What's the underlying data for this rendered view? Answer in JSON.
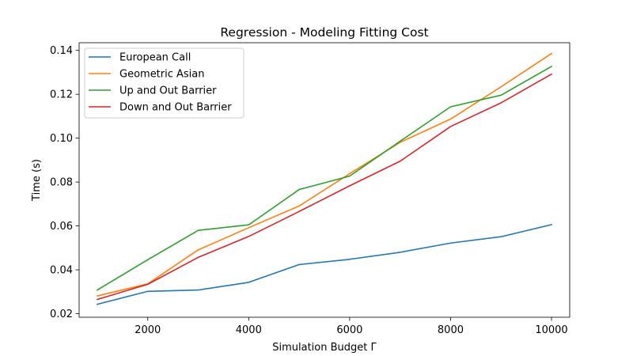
{
  "chart_data": {
    "type": "line",
    "title": "Regression - Modeling Fitting Cost",
    "xlabel": "Simulation Budget Γ",
    "ylabel": "Time (s)",
    "x": [
      1000,
      2000,
      3000,
      4000,
      5000,
      6000,
      7000,
      8000,
      9000,
      10000
    ],
    "xlim": [
      640,
      10360
    ],
    "ylim": [
      0.0184,
      0.1435
    ],
    "xticks": [
      2000,
      4000,
      6000,
      8000,
      10000
    ],
    "yticks": [
      0.02,
      0.04,
      0.06,
      0.08,
      0.1,
      0.12,
      0.14
    ],
    "xtick_labels": [
      "2000",
      "4000",
      "6000",
      "8000",
      "10000"
    ],
    "ytick_labels": [
      "0.02",
      "0.04",
      "0.06",
      "0.08",
      "0.10",
      "0.12",
      "0.14"
    ],
    "grid": false,
    "legend_position": "upper-left",
    "series": [
      {
        "name": "European Call",
        "color": "#1f77b4",
        "values": [
          0.0243,
          0.0302,
          0.0308,
          0.0343,
          0.0424,
          0.0448,
          0.048,
          0.0522,
          0.0551,
          0.0606
        ]
      },
      {
        "name": "Geometric Asian",
        "color": "#ff7f0e",
        "values": [
          0.0281,
          0.0336,
          0.0491,
          0.0592,
          0.0691,
          0.0838,
          0.0981,
          0.1087,
          0.1234,
          0.1386
        ]
      },
      {
        "name": "Up and Out Barrier",
        "color": "#2ca02c",
        "values": [
          0.0308,
          0.0446,
          0.058,
          0.0605,
          0.0766,
          0.0827,
          0.0986,
          0.1143,
          0.1196,
          0.1327
        ]
      },
      {
        "name": "Down and Out Barrier",
        "color": "#d62728",
        "values": [
          0.0265,
          0.0334,
          0.0457,
          0.0552,
          0.0666,
          0.0783,
          0.0895,
          0.1053,
          0.1161,
          0.1292
        ]
      }
    ]
  }
}
